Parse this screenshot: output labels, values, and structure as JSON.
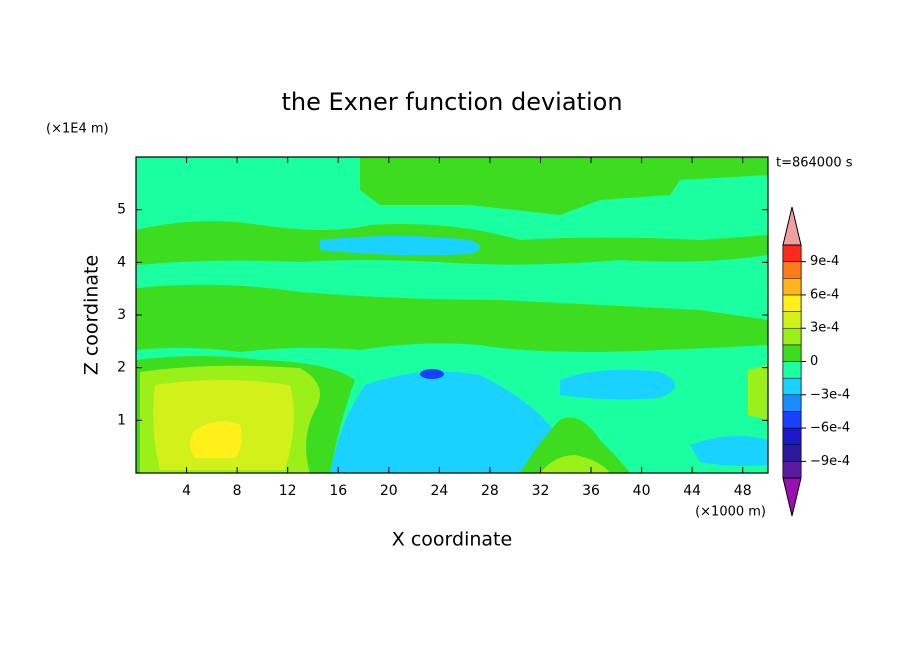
{
  "chart_data": {
    "type": "contour",
    "title": "the Exner function deviation",
    "x_label": "X coordinate",
    "y_label": "Z coordinate",
    "x_unit": "(×1000 m)",
    "y_unit": "(×1E4 m)",
    "annotation": "t=864000 s",
    "xlim": [
      0,
      50
    ],
    "xticks": [
      4,
      8,
      12,
      16,
      20,
      24,
      28,
      32,
      36,
      40,
      44,
      48
    ],
    "ylim": [
      0,
      6
    ],
    "yticks": [
      1,
      2,
      3,
      4,
      5
    ],
    "colorbar": {
      "levels": [
        -0.00105,
        -0.0009,
        -0.00075,
        -0.0006,
        -0.00045,
        -0.0003,
        -0.00015,
        0,
        0.00015,
        0.0003,
        0.00045,
        0.0006,
        0.00075,
        0.0009,
        0.00105
      ],
      "colors": [
        "#5a1aa0",
        "#2a1a9a",
        "#1a1ac8",
        "#1a40ff",
        "#1a8cff",
        "#1ad2ff",
        "#1affa0",
        "#3ddc1e",
        "#9cf01a",
        "#d2f01a",
        "#fff01a",
        "#ffb41a",
        "#ff7a1a",
        "#ff2a1a"
      ],
      "extend_low_color": "#9a10b0",
      "extend_high_color": "#f0a0a0",
      "ticks": [
        {
          "value": -0.0009,
          "label": "−9e-4"
        },
        {
          "value": -0.0006,
          "label": "−6e-4"
        },
        {
          "value": -0.0003,
          "label": "−3e-4"
        },
        0,
        {
          "value": 0.0003,
          "label": "3e-4"
        },
        {
          "value": 0.0006,
          "label": "6e-4"
        },
        {
          "value": 0.0009,
          "label": "9e-4"
        }
      ]
    }
  }
}
